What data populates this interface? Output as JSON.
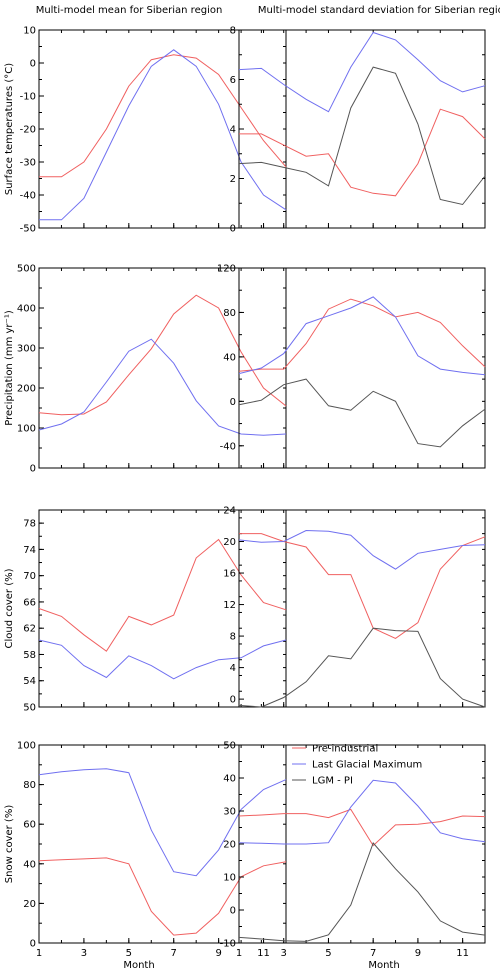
{
  "figure": {
    "col_titles": [
      "Multi-model mean for Siberian region",
      "Multi-model standard deviation for Siberian region"
    ],
    "xlabel": "Month",
    "legend": [
      "Pre-industrial",
      "Last Glacial Maximum",
      "LGM - PI"
    ],
    "colors": {
      "pi": "#f06060",
      "lgm": "#7070f0",
      "diff": "#555555"
    }
  },
  "chart_data": [
    {
      "type": "line",
      "row": 0,
      "col": 0,
      "ylabel": "Surface temperatures (°C)",
      "ylim": [
        -50,
        10
      ],
      "yticks": [
        -50,
        -40,
        -30,
        -20,
        -10,
        0,
        10
      ],
      "xlim": [
        1,
        12
      ],
      "xticks": [
        1,
        3,
        5,
        7,
        9,
        11
      ],
      "x": [
        1,
        2,
        3,
        4,
        5,
        6,
        7,
        8,
        9,
        10,
        11,
        12
      ],
      "series": [
        {
          "name": "Pre-industrial",
          "key": "pi",
          "values": [
            -34.5,
            -34.5,
            -30,
            -20,
            -7,
            1,
            2.5,
            1.5,
            -3.5,
            -13.5,
            -23.5,
            -31.5
          ]
        },
        {
          "name": "Last Glacial Maximum",
          "key": "lgm",
          "values": [
            -47.5,
            -47.5,
            -41,
            -27,
            -13,
            -1,
            4,
            -1,
            -12.5,
            -30,
            -40,
            -44.5
          ]
        }
      ]
    },
    {
      "type": "line",
      "row": 0,
      "col": 1,
      "ylabel": "",
      "ylim": [
        0,
        8
      ],
      "yticks": [
        0,
        2,
        4,
        6,
        8
      ],
      "xlim": [
        1,
        12
      ],
      "xticks": [
        1,
        3,
        5,
        7,
        9,
        11
      ],
      "x": [
        1,
        2,
        3,
        4,
        5,
        6,
        7,
        8,
        9,
        10,
        11,
        12
      ],
      "series": [
        {
          "name": "Pre-industrial",
          "key": "pi",
          "values": [
            3.8,
            3.8,
            3.35,
            2.9,
            3.0,
            1.65,
            1.4,
            1.3,
            2.6,
            4.8,
            4.5,
            3.6
          ]
        },
        {
          "name": "Last Glacial Maximum",
          "key": "lgm",
          "values": [
            6.4,
            6.45,
            5.8,
            5.2,
            4.7,
            6.5,
            7.9,
            7.6,
            6.8,
            5.95,
            5.5,
            5.75
          ]
        },
        {
          "name": "LGM - PI",
          "key": "diff",
          "values": [
            2.6,
            2.65,
            2.45,
            2.25,
            1.7,
            4.85,
            6.5,
            6.25,
            4.2,
            1.15,
            0.95,
            2.1
          ]
        }
      ]
    },
    {
      "type": "line",
      "row": 1,
      "col": 0,
      "ylabel": "Precipitation (mm yr⁻¹)",
      "ylim": [
        0,
        500
      ],
      "yticks": [
        0,
        100,
        200,
        300,
        400,
        500
      ],
      "xlim": [
        1,
        12
      ],
      "xticks": [
        1,
        3,
        5,
        7,
        9,
        11
      ],
      "x": [
        1,
        2,
        3,
        4,
        5,
        6,
        7,
        8,
        9,
        10,
        11,
        12
      ],
      "series": [
        {
          "name": "Pre-industrial",
          "key": "pi",
          "values": [
            138,
            133,
            135,
            165,
            233,
            298,
            385,
            432,
            400,
            290,
            200,
            155
          ]
        },
        {
          "name": "Last Glacial Maximum",
          "key": "lgm",
          "values": [
            95,
            110,
            140,
            215,
            292,
            322,
            262,
            168,
            105,
            85,
            82,
            85
          ]
        }
      ]
    },
    {
      "type": "line",
      "row": 1,
      "col": 1,
      "ylabel": "",
      "ylim": [
        -60,
        120
      ],
      "yticks": [
        -40,
        0,
        40,
        80,
        120
      ],
      "xlim": [
        1,
        12
      ],
      "xticks": [
        1,
        3,
        5,
        7,
        9,
        11
      ],
      "x": [
        1,
        2,
        3,
        4,
        5,
        6,
        7,
        8,
        9,
        10,
        11,
        12
      ],
      "series": [
        {
          "name": "Pre-industrial",
          "key": "pi",
          "values": [
            27,
            29,
            29,
            52,
            83,
            92,
            86,
            76,
            80,
            71,
            50,
            31
          ]
        },
        {
          "name": "Last Glacial Maximum",
          "key": "lgm",
          "values": [
            25,
            30,
            43,
            70,
            77,
            84,
            94,
            76,
            41,
            29,
            26,
            24
          ]
        },
        {
          "name": "LGM - PI",
          "key": "diff",
          "values": [
            -3,
            1,
            15,
            20,
            -4,
            -8,
            9,
            0,
            -38,
            -41,
            -22,
            -7
          ]
        }
      ]
    },
    {
      "type": "line",
      "row": 2,
      "col": 0,
      "ylabel": "Cloud cover (%)",
      "ylim": [
        50,
        80
      ],
      "yticks": [
        50,
        54,
        58,
        62,
        66,
        70,
        74,
        78
      ],
      "xlim": [
        1,
        12
      ],
      "xticks": [
        1,
        3,
        5,
        7,
        9,
        11
      ],
      "x": [
        1,
        2,
        3,
        4,
        5,
        6,
        7,
        8,
        9,
        10,
        11,
        12
      ],
      "series": [
        {
          "name": "Pre-industrial",
          "key": "pi",
          "values": [
            65,
            63.8,
            61,
            58.5,
            63.8,
            62.5,
            64,
            72.7,
            75.5,
            70.1,
            65.9,
            64.8
          ]
        },
        {
          "name": "Last Glacial Maximum",
          "key": "lgm",
          "values": [
            60.2,
            59.4,
            56.3,
            54.5,
            57.8,
            56.3,
            54.3,
            56,
            57.2,
            57.5,
            59.3,
            60.2
          ]
        }
      ]
    },
    {
      "type": "line",
      "row": 2,
      "col": 1,
      "ylabel": "",
      "ylim": [
        -1,
        24
      ],
      "yticks": [
        0,
        4,
        8,
        12,
        16,
        20,
        24
      ],
      "xlim": [
        1,
        12
      ],
      "xticks": [
        1,
        3,
        5,
        7,
        9,
        11
      ],
      "x": [
        1,
        2,
        3,
        4,
        5,
        6,
        7,
        8,
        9,
        10,
        11,
        12
      ],
      "series": [
        {
          "name": "Pre-industrial",
          "key": "pi",
          "values": [
            21,
            21,
            20,
            19.3,
            15.8,
            15.8,
            9,
            7.7,
            9.7,
            16.5,
            19.5,
            20.6
          ]
        },
        {
          "name": "Last Glacial Maximum",
          "key": "lgm",
          "values": [
            20.2,
            19.9,
            20,
            21.4,
            21.3,
            20.8,
            18.2,
            16.5,
            18.5,
            19,
            19.5,
            19.6
          ]
        },
        {
          "name": "LGM - PI",
          "key": "diff",
          "values": [
            -0.8,
            -1,
            0.2,
            2.2,
            5.5,
            5.1,
            9,
            8.7,
            8.6,
            2.6,
            0,
            -1
          ]
        }
      ]
    },
    {
      "type": "line",
      "row": 3,
      "col": 0,
      "ylabel": "Snow cover (%)",
      "ylim": [
        0,
        100
      ],
      "yticks": [
        0,
        20,
        40,
        60,
        80,
        100
      ],
      "xlim": [
        1,
        12
      ],
      "xticks": [
        1,
        3,
        5,
        7,
        9,
        11
      ],
      "x": [
        1,
        2,
        3,
        4,
        5,
        6,
        7,
        8,
        9,
        10,
        11,
        12
      ],
      "series": [
        {
          "name": "Pre-industrial",
          "key": "pi",
          "values": [
            41.5,
            42,
            42.5,
            43,
            40,
            16,
            4,
            5,
            15,
            33.5,
            39,
            41
          ]
        },
        {
          "name": "Last Glacial Maximum",
          "key": "lgm",
          "values": [
            85,
            86.5,
            87.5,
            88,
            86,
            57,
            36,
            34,
            47,
            67.5,
            77.5,
            82.5
          ]
        }
      ]
    },
    {
      "type": "line",
      "row": 3,
      "col": 1,
      "ylabel": "",
      "ylim": [
        -10,
        50
      ],
      "yticks": [
        -10,
        0,
        10,
        20,
        30,
        40,
        50
      ],
      "xlim": [
        1,
        12
      ],
      "xticks": [
        1,
        3,
        5,
        7,
        9,
        11
      ],
      "x": [
        1,
        2,
        3,
        4,
        5,
        6,
        7,
        8,
        9,
        10,
        11,
        12
      ],
      "series": [
        {
          "name": "Pre-industrial",
          "key": "pi",
          "values": [
            28.5,
            28.8,
            29.2,
            29.2,
            28,
            30.5,
            19.5,
            25.8,
            26,
            26.8,
            28.5,
            28.3
          ]
        },
        {
          "name": "Last Glacial Maximum",
          "key": "lgm",
          "values": [
            20.4,
            20.2,
            20,
            20,
            20.4,
            31.2,
            39.3,
            38.5,
            31.5,
            23.4,
            21.6,
            20.7
          ]
        },
        {
          "name": "LGM - PI",
          "key": "diff",
          "values": [
            -8.3,
            -8.8,
            -9.3,
            -9.5,
            -7.5,
            1.5,
            20.3,
            12.5,
            5.5,
            -3.3,
            -6.7,
            -7.6
          ]
        }
      ]
    }
  ]
}
